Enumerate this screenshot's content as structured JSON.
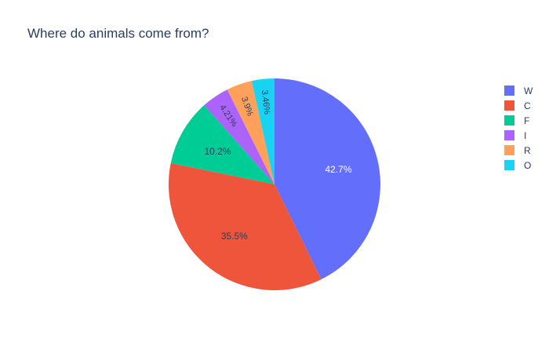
{
  "chart_data": {
    "type": "pie",
    "title": "Where do animals come from?",
    "labels": [
      "W",
      "C",
      "F",
      "I",
      "R",
      "O"
    ],
    "values": [
      42.7,
      35.5,
      10.2,
      4.21,
      3.9,
      3.46
    ],
    "text_labels": [
      "42.7%",
      "35.5%",
      "10.2%",
      "4.21%",
      "3.9%",
      "3.46%"
    ],
    "colors": [
      "#636efa",
      "#ef553b",
      "#00cc96",
      "#ab63fa",
      "#ffa15a",
      "#19d3f3"
    ],
    "direction": "clockwise",
    "rotation_start": "top",
    "legend_position": "right"
  }
}
